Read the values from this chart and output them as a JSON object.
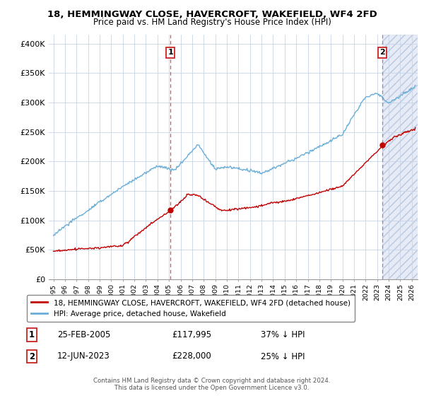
{
  "title": "18, HEMMINGWAY CLOSE, HAVERCROFT, WAKEFIELD, WF4 2FD",
  "subtitle": "Price paid vs. HM Land Registry's House Price Index (HPI)",
  "ylabel_ticks": [
    "£0",
    "£50K",
    "£100K",
    "£150K",
    "£200K",
    "£250K",
    "£300K",
    "£350K",
    "£400K"
  ],
  "ytick_values": [
    0,
    50000,
    100000,
    150000,
    200000,
    250000,
    300000,
    350000,
    400000
  ],
  "ylim": [
    0,
    415000
  ],
  "sale1_t": 2005.12,
  "sale1_p": 117995,
  "sale2_t": 2023.44,
  "sale2_p": 228000,
  "legend_line1": "18, HEMMINGWAY CLOSE, HAVERCROFT, WAKEFIELD, WF4 2FD (detached house)",
  "legend_line2": "HPI: Average price, detached house, Wakefield",
  "ann1_date": "25-FEB-2005",
  "ann1_price": "£117,995",
  "ann1_hpi": "37% ↓ HPI",
  "ann2_date": "12-JUN-2023",
  "ann2_price": "£228,000",
  "ann2_hpi": "25% ↓ HPI",
  "footer": "Contains HM Land Registry data © Crown copyright and database right 2024.\nThis data is licensed under the Open Government Licence v3.0.",
  "hpi_color": "#6aaed6",
  "sale_color": "#c00000",
  "vline1_color": "#e05050",
  "vline2_color": "#9090cc",
  "bg_color": "#ffffff",
  "grid_color": "#c8d4e8",
  "hatch_color": "#d0d8ee"
}
